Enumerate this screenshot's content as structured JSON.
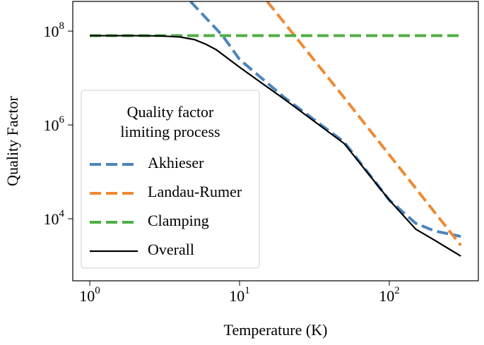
{
  "chart_data": {
    "type": "line",
    "x_label": "Temperature (K)",
    "y_label": "Quality Factor",
    "xscale": "log",
    "yscale": "log",
    "xlim": [
      0.77,
      393
    ],
    "ylim": [
      475,
      430000000
    ],
    "xticks": [
      {
        "value": 1,
        "label": "10^0"
      },
      {
        "value": 10,
        "label": "10^1"
      },
      {
        "value": 100,
        "label": "10^2"
      }
    ],
    "yticks": [
      {
        "value": 10000,
        "label": "10^4"
      },
      {
        "value": 1000000,
        "label": "10^6"
      },
      {
        "value": 100000000,
        "label": "10^8"
      }
    ],
    "legend_title": [
      "Quality factor",
      "limiting process"
    ],
    "legend_position": "lower left",
    "series": [
      {
        "name": "Akhieser",
        "color": "#4a85bd",
        "dash": true,
        "x": [
          4.7,
          7.7,
          10,
          20,
          50,
          100,
          150,
          200,
          300
        ],
        "values": [
          430000000,
          80000000,
          25000000,
          3800000,
          430000,
          25000,
          8000,
          5500,
          4200
        ]
      },
      {
        "name": "Landau-Rumer",
        "color": "#ef8a34",
        "dash": true,
        "x": [
          15.3,
          50,
          300
        ],
        "values": [
          430000000,
          3800000,
          2700
        ]
      },
      {
        "name": "Clamping",
        "color": "#4fae45",
        "dash": true,
        "x": [
          1,
          300
        ],
        "values": [
          80000000,
          80000000
        ]
      },
      {
        "name": "Overall",
        "color": "#000000",
        "dash": false,
        "x": [
          1,
          2,
          3,
          4,
          5,
          6,
          7,
          10,
          20,
          50,
          100,
          150,
          200,
          300
        ],
        "values": [
          80000000,
          80000000,
          79000000,
          75000000,
          66000000,
          52000000,
          40000000,
          17000000,
          3500000,
          400000,
          25000,
          6000,
          3500,
          1600
        ]
      }
    ]
  }
}
